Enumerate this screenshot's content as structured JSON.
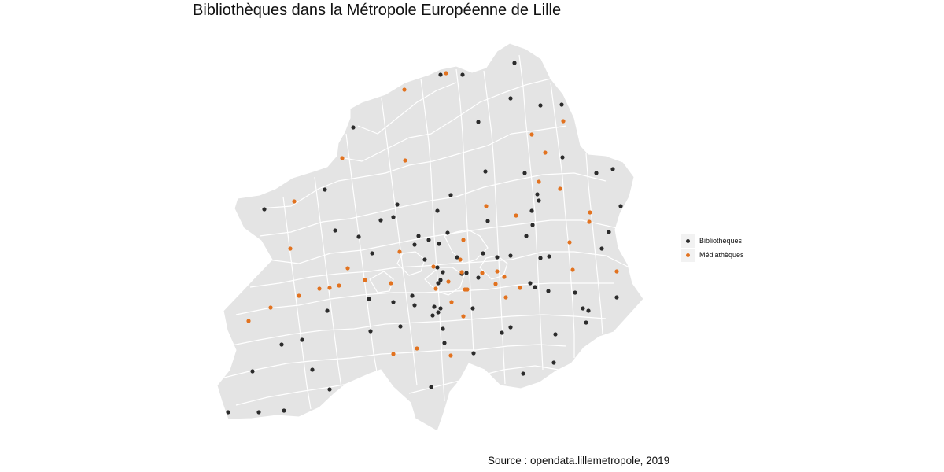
{
  "title": "Bibliothèques dans la Métropole Européenne de Lille",
  "caption": "Source : opendata.lillemetropole, 2019",
  "colors": {
    "region_fill": "#e4e4e4",
    "border": "#ffffff",
    "bibliotheques": "#2b2b2b",
    "mediatheques": "#e2721f"
  },
  "legend": {
    "bibliotheques": "Bibliothèques",
    "mediatheques": "Médiathèques"
  }
}
